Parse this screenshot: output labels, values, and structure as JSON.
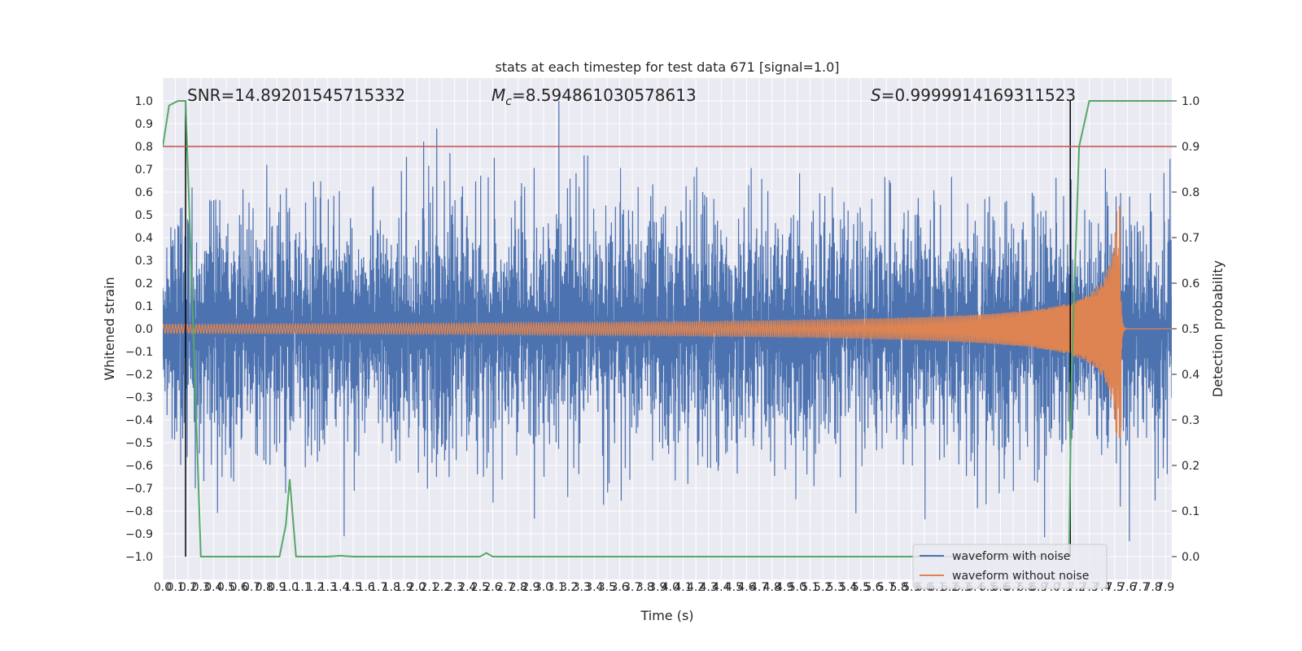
{
  "chart_data": {
    "type": "line",
    "title": "stats at each timestep for test data 671 [signal=1.0]",
    "xlabel": "Time (s)",
    "ylabel": "Whitened strain",
    "y2label": "Detection probability",
    "xlim": [
      0.0,
      7.95
    ],
    "ylim": [
      -1.1,
      1.1
    ],
    "y2lim": [
      -0.05,
      1.05
    ],
    "grid": true,
    "legend_position": "bottom-right",
    "x_ticks": [
      0.0,
      0.1,
      0.2,
      0.3,
      0.4,
      0.5,
      0.6,
      0.7,
      0.8,
      0.9,
      1.0,
      1.1,
      1.2,
      1.3,
      1.4,
      1.5,
      1.6,
      1.7,
      1.8,
      1.9,
      2.0,
      2.1,
      2.2,
      2.3,
      2.4,
      2.5,
      2.6,
      2.7,
      2.8,
      2.9,
      3.0,
      3.1,
      3.2,
      3.3,
      3.4,
      3.5,
      3.6,
      3.7,
      3.8,
      3.9,
      4.0,
      4.1,
      4.2,
      4.3,
      4.4,
      4.5,
      4.6,
      4.7,
      4.8,
      4.9,
      5.0,
      5.1,
      5.2,
      5.3,
      5.4,
      5.5,
      5.6,
      5.7,
      5.8,
      5.9,
      6.0,
      6.1,
      6.2,
      6.3,
      6.4,
      6.5,
      6.6,
      6.7,
      6.8,
      6.9,
      7.0,
      7.1,
      7.2,
      7.3,
      7.4,
      7.5,
      7.6,
      7.7,
      7.8,
      7.9
    ],
    "y_ticks": [
      -1.0,
      -0.9,
      -0.8,
      -0.7,
      -0.6,
      -0.5,
      -0.4,
      -0.3,
      -0.2,
      -0.1,
      0.0,
      0.1,
      0.2,
      0.3,
      0.4,
      0.5,
      0.6,
      0.7,
      0.8,
      0.9,
      1.0
    ],
    "y2_ticks": [
      0.0,
      0.1,
      0.2,
      0.3,
      0.4,
      0.5,
      0.6,
      0.7,
      0.8,
      0.9,
      1.0
    ],
    "annotations": {
      "snr": "SNR=14.89201545715332",
      "mc_symbol": "M",
      "mc_subscript": "c",
      "mc_value": "=8.594861030578613",
      "s_symbol": "S",
      "s_value": "=0.9999914169311523"
    },
    "threshold_line": {
      "y2": 0.9,
      "color": "#c44e52"
    },
    "vertical_lines": [
      0.18,
      7.15
    ],
    "series": [
      {
        "name": "waveform with noise",
        "color": "#4c72b0",
        "axis": "left",
        "kind": "noise",
        "t_start": 0.0,
        "t_end": 7.95,
        "typical_amplitude": 0.35,
        "peak_amplitude": 1.0
      },
      {
        "name": "waveform without noise",
        "color": "#dd8452",
        "axis": "left",
        "kind": "chirp",
        "t_start": 0.0,
        "t_merger": 7.55,
        "t_end": 7.95,
        "start_amplitude": 0.02,
        "peak_max": 0.55,
        "peak_min": -0.48
      },
      {
        "name": "detection probability",
        "color": "#55a868",
        "axis": "right",
        "x": [
          0.0,
          0.05,
          0.12,
          0.16,
          0.18,
          0.3,
          0.92,
          0.97,
          1.0,
          1.05,
          1.1,
          1.2,
          1.3,
          1.4,
          1.5,
          1.6,
          2.0,
          2.5,
          2.55,
          2.6,
          2.65,
          2.7,
          3.0,
          4.0,
          5.0,
          6.0,
          7.0,
          7.14,
          7.16,
          7.22,
          7.3,
          7.4,
          7.5,
          7.6,
          7.7,
          7.8,
          7.9,
          7.95
        ],
        "values": [
          0.9,
          0.99,
          1.0,
          1.0,
          1.0,
          0.0,
          0.0,
          0.07,
          0.17,
          0.0,
          0.0,
          0.0,
          0.0,
          0.002,
          0.0,
          0.0,
          0.0,
          0.0,
          0.008,
          0.0,
          0.0,
          0.0,
          0.0,
          0.0,
          0.0,
          0.0,
          0.0,
          0.0,
          0.4,
          0.9,
          1.0,
          1.0,
          1.0,
          1.0,
          1.0,
          1.0,
          1.0,
          1.0
        ]
      }
    ]
  }
}
